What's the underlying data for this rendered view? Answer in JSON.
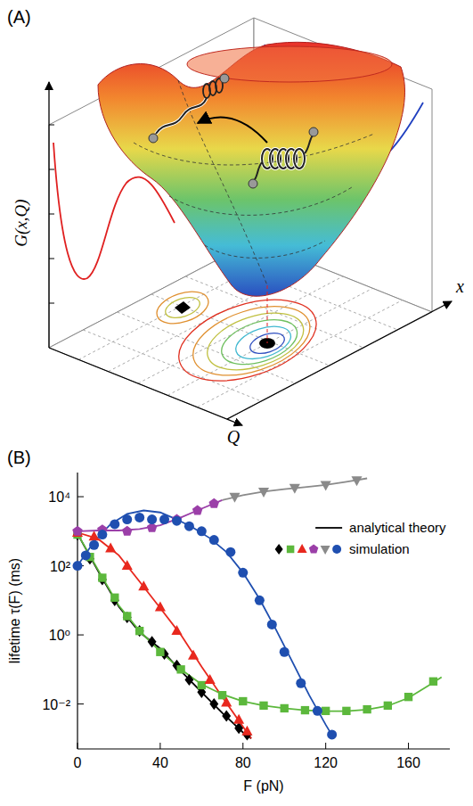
{
  "chart_data": [
    {
      "type": "surface",
      "panel_label": "(A)",
      "x_label": "x",
      "y_label": "Q",
      "z_label": "G(x,Q)"
    },
    {
      "type": "line",
      "panel_label": "(B)",
      "x_label": "F (pN)",
      "y_label": "lifetime τ(F) (ms)",
      "log": "y",
      "xlim": [
        0,
        180
      ],
      "ylim": [
        0.0005,
        50000
      ],
      "xticks": [
        0,
        40,
        80,
        120,
        160
      ],
      "yticks": [
        {
          "value": 0.01,
          "label": "10⁻²"
        },
        {
          "value": 1,
          "label": "10⁰"
        },
        {
          "value": 100,
          "label": "10²"
        },
        {
          "value": 10000,
          "label": "10⁴"
        }
      ],
      "grid": false,
      "legend": "upper right",
      "legend_labels": [
        "analytical theory",
        "simulation"
      ],
      "series": [
        {
          "type": "line",
          "line_style": "solid",
          "color": "#000000",
          "x": [
            0,
            10,
            20,
            30,
            40,
            50,
            60,
            70,
            80,
            84
          ],
          "values": [
            850,
            70,
            6.5,
            1.2,
            0.4,
            0.09,
            0.022,
            0.0055,
            0.0015,
            0.001
          ]
        },
        {
          "type": "line",
          "line_style": "solid",
          "color": "#5cb83c",
          "x": [
            0,
            10,
            20,
            30,
            40,
            50,
            60,
            70,
            80,
            90,
            100,
            110,
            120,
            130,
            140,
            150,
            160,
            170,
            176
          ],
          "values": [
            850,
            75,
            7,
            1.3,
            0.33,
            0.1,
            0.037,
            0.019,
            0.012,
            0.009,
            0.0075,
            0.0066,
            0.0062,
            0.0062,
            0.0069,
            0.0088,
            0.015,
            0.035,
            0.06
          ]
        },
        {
          "type": "line",
          "line_style": "solid",
          "color": "#e8281e",
          "x": [
            0,
            10,
            20,
            30,
            40,
            50,
            60,
            70,
            80,
            84
          ],
          "values": [
            920,
            600,
            200,
            35,
            6,
            1,
            0.12,
            0.016,
            0.0022,
            0.001
          ]
        },
        {
          "type": "line",
          "line_style": "solid",
          "color": "#1f4fb0",
          "x": [
            0,
            8,
            16,
            24,
            32,
            40,
            48,
            56,
            64,
            72,
            80,
            88,
            96,
            104,
            112,
            120,
            124
          ],
          "values": [
            100,
            500,
            1600,
            3200,
            4000,
            3500,
            2200,
            1260,
            630,
            250,
            63,
            11,
            1.4,
            0.16,
            0.018,
            0.0025,
            0.001
          ]
        },
        {
          "type": "line",
          "line_style": "solid",
          "color": "#9b3fa8",
          "x": [
            0,
            10,
            20,
            30,
            40,
            50,
            60,
            70
          ],
          "values": [
            1000,
            1050,
            1050,
            1150,
            1500,
            2500,
            4500,
            8000
          ]
        },
        {
          "type": "line",
          "line_style": "solid",
          "color": "#8a8a8a",
          "x": [
            70,
            80,
            90,
            100,
            110,
            120,
            130,
            140
          ],
          "values": [
            8000,
            11000,
            14000,
            16500,
            19000,
            22000,
            27000,
            34000
          ]
        },
        {
          "type": "scatter",
          "marker": "diamond",
          "color": "#000000",
          "x": [
            0,
            6,
            12,
            18,
            24,
            30,
            36,
            42,
            48,
            54,
            60,
            66,
            72,
            78,
            82
          ],
          "values": [
            800,
            160,
            40,
            10,
            3.2,
            1.3,
            0.63,
            0.28,
            0.13,
            0.05,
            0.022,
            0.01,
            0.0045,
            0.002,
            0.0013
          ]
        },
        {
          "type": "scatter",
          "marker": "square",
          "color": "#5cb83c",
          "x": [
            0,
            6,
            12,
            18,
            24,
            30,
            40,
            50,
            60,
            70,
            80,
            90,
            100,
            110,
            120,
            130,
            140,
            150,
            160,
            172
          ],
          "values": [
            800,
            180,
            45,
            12,
            3.5,
            1.3,
            0.32,
            0.1,
            0.035,
            0.018,
            0.012,
            0.009,
            0.0075,
            0.0066,
            0.0063,
            0.0063,
            0.007,
            0.009,
            0.016,
            0.045
          ]
        },
        {
          "type": "scatter",
          "marker": "triangle",
          "color": "#e8281e",
          "x": [
            0,
            8,
            16,
            24,
            32,
            40,
            48,
            56,
            64,
            72,
            78,
            82
          ],
          "values": [
            900,
            700,
            320,
            100,
            25,
            6.3,
            1.3,
            0.25,
            0.05,
            0.011,
            0.0035,
            0.0016
          ]
        },
        {
          "type": "scatter",
          "marker": "pentagon",
          "color": "#9b3fa8",
          "x": [
            0,
            12,
            24,
            36,
            48,
            58,
            66
          ],
          "values": [
            1000,
            1100,
            1000,
            1260,
            2200,
            4000,
            6300
          ]
        },
        {
          "type": "scatter",
          "marker": "triangle-down",
          "color": "#8a8a8a",
          "x": [
            76,
            90,
            105,
            120,
            135
          ],
          "values": [
            10000,
            14000,
            18000,
            22000,
            30000
          ]
        },
        {
          "type": "scatter",
          "marker": "circle",
          "color": "#1f4fb0",
          "x": [
            0,
            4,
            8,
            12,
            18,
            24,
            30,
            36,
            42,
            48,
            54,
            60,
            66,
            74,
            80,
            88,
            94,
            100,
            108,
            116,
            123
          ],
          "values": [
            100,
            200,
            400,
            800,
            1600,
            2200,
            2500,
            2200,
            2200,
            2000,
            1400,
            1000,
            560,
            250,
            63,
            10,
            2,
            0.32,
            0.04,
            0.0063,
            0.0013
          ]
        }
      ]
    }
  ]
}
